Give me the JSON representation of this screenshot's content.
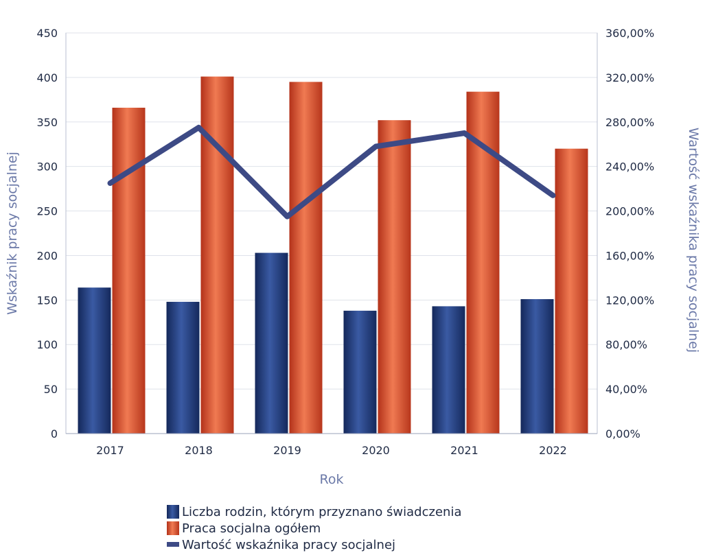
{
  "chart_data": {
    "type": "bar",
    "title": "",
    "categories": [
      "2017",
      "2018",
      "2019",
      "2020",
      "2021",
      "2022"
    ],
    "series": [
      {
        "name": "Liczba rodzin, którym przyznano świadczenia",
        "type": "bar",
        "axis": "left",
        "color": "#1f3a78",
        "values": [
          164,
          148,
          203,
          138,
          143,
          151
        ]
      },
      {
        "name": "Praca socjalna ogółem",
        "type": "bar",
        "axis": "left",
        "color": "#d24a2c",
        "values": [
          366,
          401,
          395,
          352,
          384,
          320
        ]
      },
      {
        "name": "Wartość wskaźnika pracy socjalnej",
        "type": "line",
        "axis": "right",
        "color": "#3d4a85",
        "values": [
          225,
          275,
          195,
          258,
          270,
          214
        ]
      }
    ],
    "xlabel": "Rok",
    "ylabel": "Wskaźnik pracy socjalnej",
    "y2label": "Wartość wskaźnika pracy socjalnej",
    "ylim": [
      0,
      450
    ],
    "y2lim": [
      0,
      360
    ],
    "yticks": [
      "0",
      "50",
      "100",
      "150",
      "200",
      "250",
      "300",
      "350",
      "400",
      "450"
    ],
    "y2ticks": [
      "0,00%",
      "40,00%",
      "80,00%",
      "120,00%",
      "160,00%",
      "200,00%",
      "240,00%",
      "280,00%",
      "320,00%",
      "360,00%"
    ],
    "grid": true,
    "legend": "bottom"
  }
}
